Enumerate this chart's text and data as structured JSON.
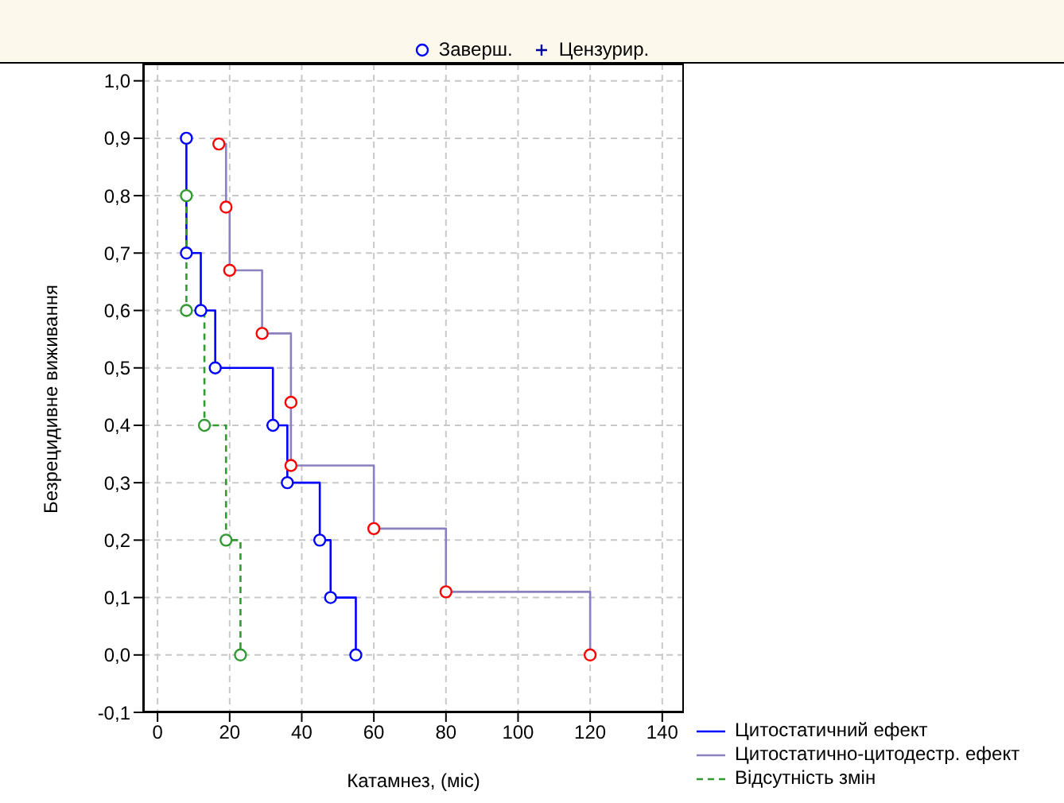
{
  "chart_data": {
    "type": "step",
    "xlabel": "Катамнез, (міс)",
    "ylabel": "Безрецидивне виживання",
    "annotations": [
      "Заверш.",
      "Цензурир."
    ],
    "xlim": [
      -4,
      146
    ],
    "ylim": [
      -0.1,
      1.03
    ],
    "xticks": [
      0,
      20,
      40,
      60,
      80,
      100,
      120,
      140
    ],
    "yticks": [
      {
        "value": -0.1,
        "label": "-0,1"
      },
      {
        "value": 0,
        "label": "0,0"
      },
      {
        "value": 0.1,
        "label": "0,1"
      },
      {
        "value": 0.2,
        "label": "0,2"
      },
      {
        "value": 0.3,
        "label": "0,3"
      },
      {
        "value": 0.4,
        "label": "0,4"
      },
      {
        "value": 0.5,
        "label": "0,5"
      },
      {
        "value": 0.6,
        "label": "0,6"
      },
      {
        "value": 0.7,
        "label": "0,7"
      },
      {
        "value": 0.8,
        "label": "0,8"
      },
      {
        "value": 0.9,
        "label": "0,9"
      },
      {
        "value": 1.0,
        "label": "1,0"
      }
    ],
    "grid": true,
    "legend": "bottom right",
    "marker": "circle",
    "line_style": "solid",
    "series": [
      {
        "name": "Цитостатичний ефект",
        "color": "#0000ff",
        "x": [
          8,
          8,
          12,
          16,
          32,
          36,
          45,
          48,
          55
        ],
        "values": [
          0.9,
          0.7,
          0.6,
          0.5,
          0.4,
          0.3,
          0.2,
          0.1,
          0
        ]
      },
      {
        "name": "Цитостатично-цитодестр. ефект",
        "color": "#8c80c0",
        "colors": [
          "#ff0000",
          "#ff0000",
          "#ff0000",
          "#ff0000",
          "#ff0000",
          "#ff0000",
          "#ff0000",
          "#ff0000",
          "#ff0000"
        ],
        "x": [
          17,
          19,
          20,
          29,
          37,
          37,
          60,
          80,
          120
        ],
        "values": [
          0.89,
          0.78,
          0.67,
          0.56,
          0.44,
          0.33,
          0.22,
          0.11,
          0
        ]
      },
      {
        "name": "Відсутність змін",
        "color": "#339933",
        "line_style": "dashed",
        "x": [
          8,
          8,
          13,
          19,
          23
        ],
        "values": [
          0.8,
          0.6,
          0.4,
          0.2,
          0
        ]
      }
    ]
  }
}
